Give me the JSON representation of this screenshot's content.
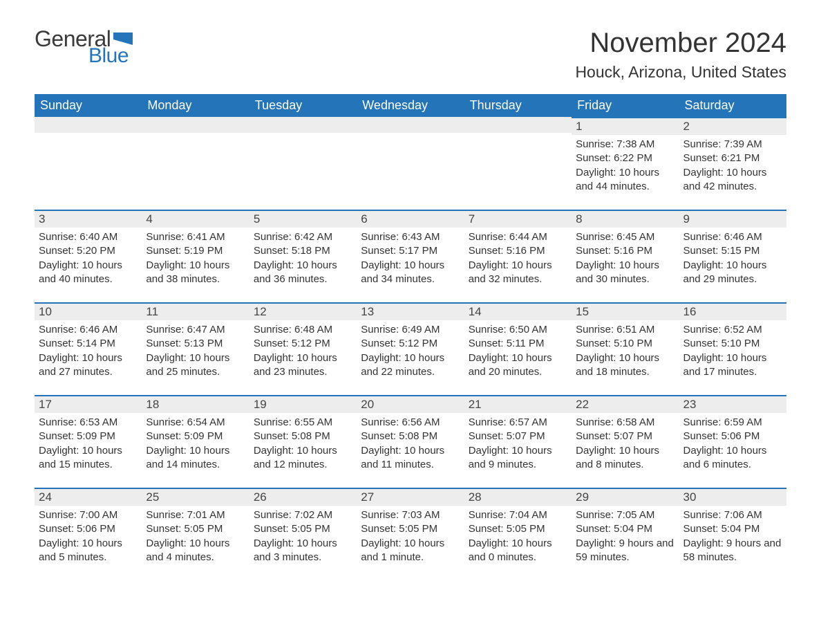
{
  "brand": {
    "text1": "General",
    "text2": "Blue",
    "color_text1": "#3a3a3a",
    "color_text2": "#2374b8",
    "flag_color": "#2374b8"
  },
  "title": "November 2024",
  "location": "Houck, Arizona, United States",
  "header_bg": "#2374b8",
  "header_fg": "#ffffff",
  "day_num_bg": "#ededed",
  "accent_border": "#2374b8",
  "text_color": "#333333",
  "background": "#ffffff",
  "day_headers": [
    "Sunday",
    "Monday",
    "Tuesday",
    "Wednesday",
    "Thursday",
    "Friday",
    "Saturday"
  ],
  "weeks": [
    [
      null,
      null,
      null,
      null,
      null,
      {
        "n": "1",
        "sunrise": "7:38 AM",
        "sunset": "6:22 PM",
        "daylight": "10 hours and 44 minutes."
      },
      {
        "n": "2",
        "sunrise": "7:39 AM",
        "sunset": "6:21 PM",
        "daylight": "10 hours and 42 minutes."
      }
    ],
    [
      {
        "n": "3",
        "sunrise": "6:40 AM",
        "sunset": "5:20 PM",
        "daylight": "10 hours and 40 minutes."
      },
      {
        "n": "4",
        "sunrise": "6:41 AM",
        "sunset": "5:19 PM",
        "daylight": "10 hours and 38 minutes."
      },
      {
        "n": "5",
        "sunrise": "6:42 AM",
        "sunset": "5:18 PM",
        "daylight": "10 hours and 36 minutes."
      },
      {
        "n": "6",
        "sunrise": "6:43 AM",
        "sunset": "5:17 PM",
        "daylight": "10 hours and 34 minutes."
      },
      {
        "n": "7",
        "sunrise": "6:44 AM",
        "sunset": "5:16 PM",
        "daylight": "10 hours and 32 minutes."
      },
      {
        "n": "8",
        "sunrise": "6:45 AM",
        "sunset": "5:16 PM",
        "daylight": "10 hours and 30 minutes."
      },
      {
        "n": "9",
        "sunrise": "6:46 AM",
        "sunset": "5:15 PM",
        "daylight": "10 hours and 29 minutes."
      }
    ],
    [
      {
        "n": "10",
        "sunrise": "6:46 AM",
        "sunset": "5:14 PM",
        "daylight": "10 hours and 27 minutes."
      },
      {
        "n": "11",
        "sunrise": "6:47 AM",
        "sunset": "5:13 PM",
        "daylight": "10 hours and 25 minutes."
      },
      {
        "n": "12",
        "sunrise": "6:48 AM",
        "sunset": "5:12 PM",
        "daylight": "10 hours and 23 minutes."
      },
      {
        "n": "13",
        "sunrise": "6:49 AM",
        "sunset": "5:12 PM",
        "daylight": "10 hours and 22 minutes."
      },
      {
        "n": "14",
        "sunrise": "6:50 AM",
        "sunset": "5:11 PM",
        "daylight": "10 hours and 20 minutes."
      },
      {
        "n": "15",
        "sunrise": "6:51 AM",
        "sunset": "5:10 PM",
        "daylight": "10 hours and 18 minutes."
      },
      {
        "n": "16",
        "sunrise": "6:52 AM",
        "sunset": "5:10 PM",
        "daylight": "10 hours and 17 minutes."
      }
    ],
    [
      {
        "n": "17",
        "sunrise": "6:53 AM",
        "sunset": "5:09 PM",
        "daylight": "10 hours and 15 minutes."
      },
      {
        "n": "18",
        "sunrise": "6:54 AM",
        "sunset": "5:09 PM",
        "daylight": "10 hours and 14 minutes."
      },
      {
        "n": "19",
        "sunrise": "6:55 AM",
        "sunset": "5:08 PM",
        "daylight": "10 hours and 12 minutes."
      },
      {
        "n": "20",
        "sunrise": "6:56 AM",
        "sunset": "5:08 PM",
        "daylight": "10 hours and 11 minutes."
      },
      {
        "n": "21",
        "sunrise": "6:57 AM",
        "sunset": "5:07 PM",
        "daylight": "10 hours and 9 minutes."
      },
      {
        "n": "22",
        "sunrise": "6:58 AM",
        "sunset": "5:07 PM",
        "daylight": "10 hours and 8 minutes."
      },
      {
        "n": "23",
        "sunrise": "6:59 AM",
        "sunset": "5:06 PM",
        "daylight": "10 hours and 6 minutes."
      }
    ],
    [
      {
        "n": "24",
        "sunrise": "7:00 AM",
        "sunset": "5:06 PM",
        "daylight": "10 hours and 5 minutes."
      },
      {
        "n": "25",
        "sunrise": "7:01 AM",
        "sunset": "5:05 PM",
        "daylight": "10 hours and 4 minutes."
      },
      {
        "n": "26",
        "sunrise": "7:02 AM",
        "sunset": "5:05 PM",
        "daylight": "10 hours and 3 minutes."
      },
      {
        "n": "27",
        "sunrise": "7:03 AM",
        "sunset": "5:05 PM",
        "daylight": "10 hours and 1 minute."
      },
      {
        "n": "28",
        "sunrise": "7:04 AM",
        "sunset": "5:05 PM",
        "daylight": "10 hours and 0 minutes."
      },
      {
        "n": "29",
        "sunrise": "7:05 AM",
        "sunset": "5:04 PM",
        "daylight": "9 hours and 59 minutes."
      },
      {
        "n": "30",
        "sunrise": "7:06 AM",
        "sunset": "5:04 PM",
        "daylight": "9 hours and 58 minutes."
      }
    ]
  ],
  "labels": {
    "sunrise": "Sunrise:",
    "sunset": "Sunset:",
    "daylight": "Daylight:"
  }
}
